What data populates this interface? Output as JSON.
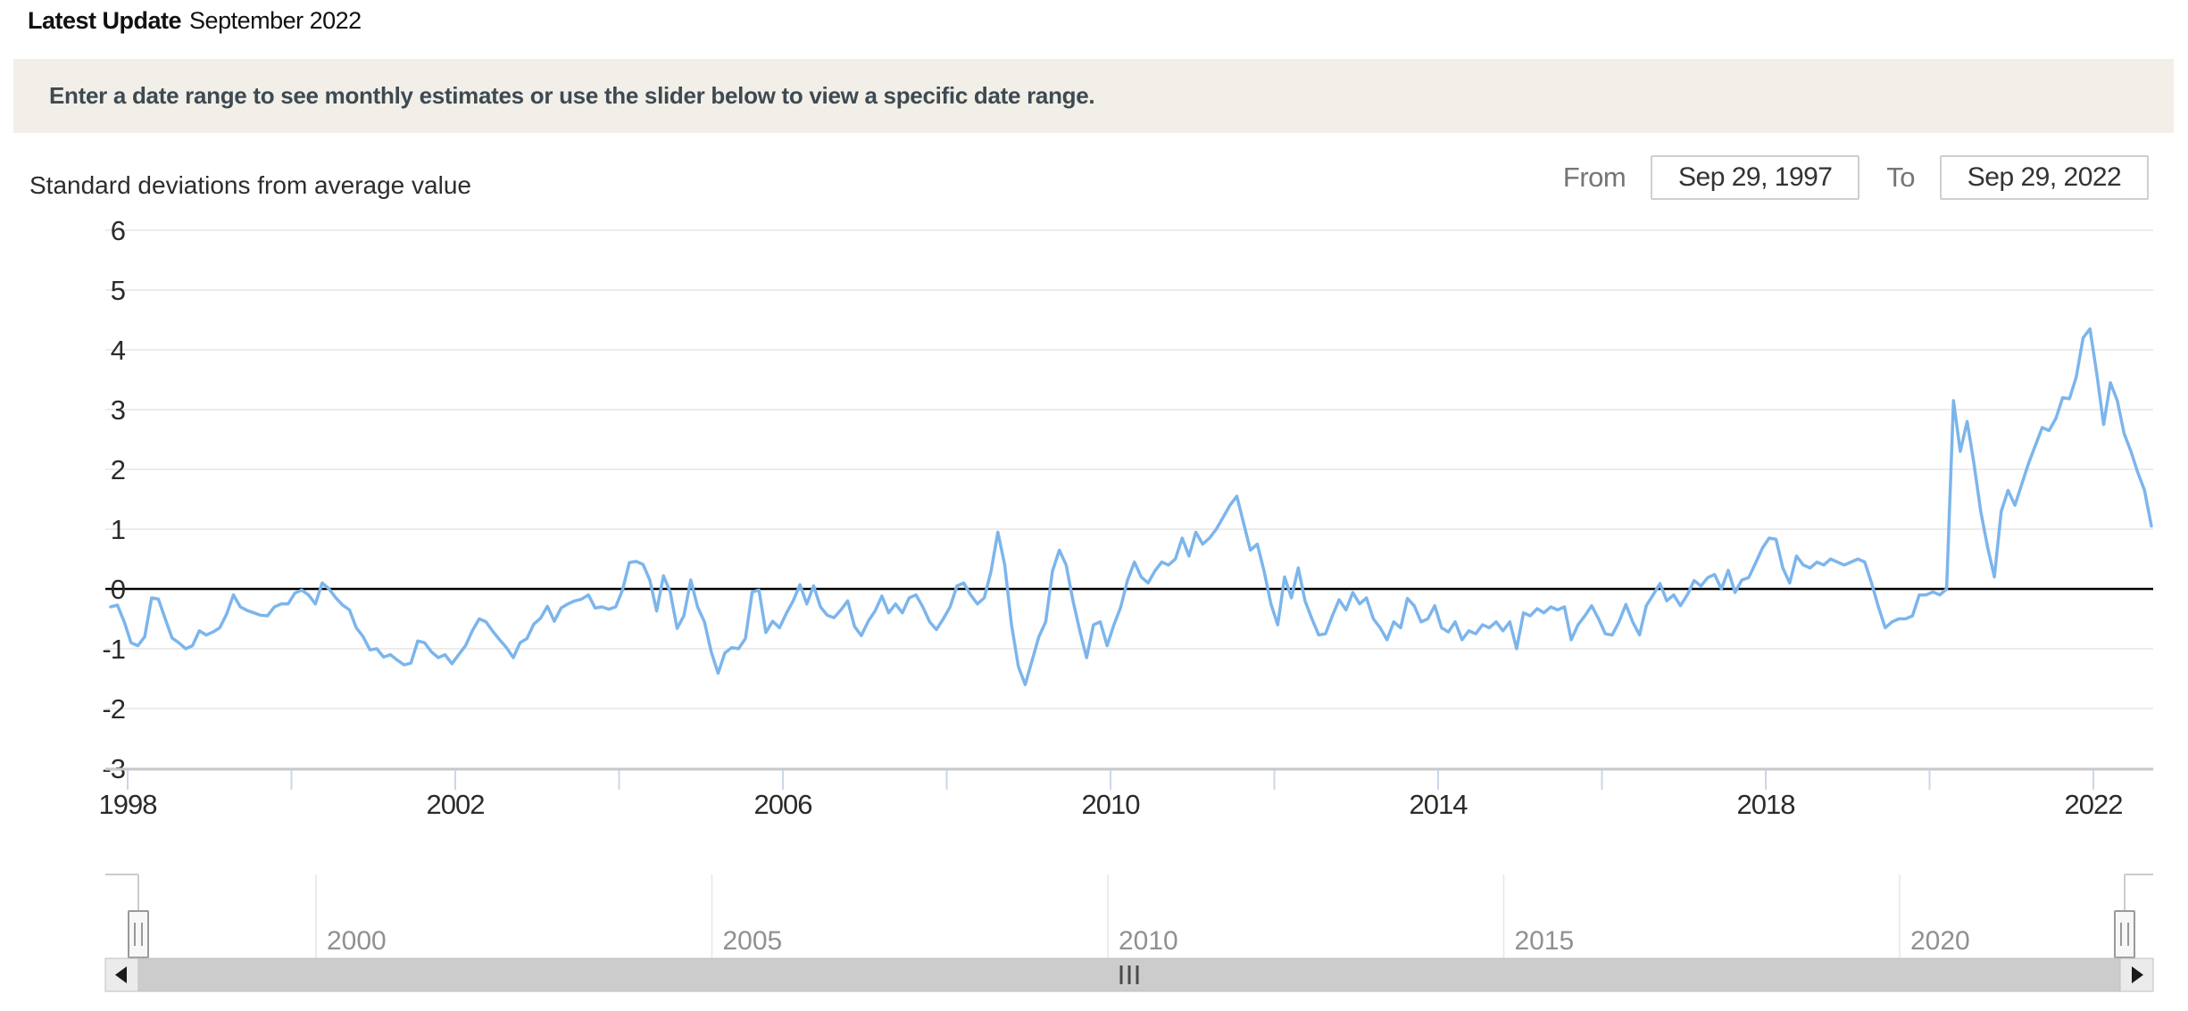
{
  "header": {
    "label": "Latest Update",
    "value": "September 2022"
  },
  "notice": {
    "text": "Enter a date range to see monthly estimates or use the slider below to view a specific date range."
  },
  "controls": {
    "from_label": "From",
    "from_value": "Sep 29, 1997",
    "to_label": "To",
    "to_value": "Sep 29, 2022"
  },
  "colors": {
    "notice_bg": "#f2efe8",
    "notice_text": "#3d4a52",
    "line": "#7cb5ec",
    "grid": "#e6e6e6",
    "zero_line": "#000000",
    "axis_line": "#c8c8c8",
    "tick": "#ccd6eb",
    "axis_label": "#2b2b2b",
    "nav_label": "#909090",
    "nav_outline": "#cccccc",
    "scrollbar_track": "#cccccc",
    "scrollbar_button": "#ebebeb",
    "scrollbar_border": "#bfbfbf",
    "arrow": "#1a1a1a",
    "grip": "#4a4a4a",
    "handle_fill": "#f7f7f7",
    "handle_border": "#999999"
  },
  "chart_data": {
    "type": "line",
    "title": "Standard deviations from average value",
    "x_range_labels": [
      "Oct 1997",
      "Sep 2022"
    ],
    "x_start": 1997.7917,
    "x_step": 0.0833333,
    "ylim": [
      -3,
      6
    ],
    "grid": true,
    "y_axis": {
      "ticks": [
        6,
        5,
        4,
        3,
        2,
        1,
        0,
        -1,
        -2,
        -3
      ]
    },
    "x_axis": {
      "tick_years": [
        1998,
        2000,
        2002,
        2004,
        2006,
        2008,
        2010,
        2012,
        2014,
        2016,
        2018,
        2020,
        2022
      ],
      "label_years": [
        1998,
        2002,
        2006,
        2010,
        2014,
        2018,
        2022
      ]
    },
    "navigator": {
      "label_years": [
        2000,
        2005,
        2010,
        2015,
        2020
      ]
    },
    "values": [
      -0.3,
      -0.27,
      -0.55,
      -0.9,
      -0.95,
      -0.8,
      -0.15,
      -0.17,
      -0.5,
      -0.82,
      -0.9,
      -1.0,
      -0.95,
      -0.7,
      -0.77,
      -0.72,
      -0.65,
      -0.42,
      -0.1,
      -0.3,
      -0.36,
      -0.4,
      -0.44,
      -0.45,
      -0.3,
      -0.25,
      -0.25,
      -0.07,
      -0.02,
      -0.1,
      -0.25,
      0.1,
      0.0,
      -0.15,
      -0.27,
      -0.35,
      -0.65,
      -0.8,
      -1.02,
      -1.0,
      -1.14,
      -1.1,
      -1.19,
      -1.27,
      -1.24,
      -0.87,
      -0.9,
      -1.05,
      -1.15,
      -1.1,
      -1.25,
      -1.1,
      -0.95,
      -0.7,
      -0.5,
      -0.55,
      -0.71,
      -0.85,
      -0.98,
      -1.15,
      -0.9,
      -0.83,
      -0.59,
      -0.49,
      -0.29,
      -0.54,
      -0.32,
      -0.25,
      -0.2,
      -0.17,
      -0.1,
      -0.32,
      -0.3,
      -0.34,
      -0.3,
      -0.02,
      0.44,
      0.46,
      0.41,
      0.15,
      -0.37,
      0.22,
      -0.05,
      -0.66,
      -0.45,
      0.15,
      -0.3,
      -0.55,
      -1.05,
      -1.41,
      -1.07,
      -0.98,
      -1.0,
      -0.83,
      -0.05,
      -0.02,
      -0.73,
      -0.54,
      -0.65,
      -0.41,
      -0.2,
      0.07,
      -0.25,
      0.05,
      -0.3,
      -0.44,
      -0.48,
      -0.35,
      -0.2,
      -0.63,
      -0.78,
      -0.54,
      -0.37,
      -0.12,
      -0.4,
      -0.25,
      -0.4,
      -0.15,
      -0.1,
      -0.3,
      -0.55,
      -0.68,
      -0.5,
      -0.3,
      0.05,
      0.1,
      -0.1,
      -0.25,
      -0.15,
      0.3,
      0.95,
      0.4,
      -0.6,
      -1.3,
      -1.6,
      -1.2,
      -0.8,
      -0.55,
      0.3,
      0.65,
      0.4,
      -0.2,
      -0.7,
      -1.15,
      -0.6,
      -0.55,
      -0.95,
      -0.6,
      -0.3,
      0.15,
      0.45,
      0.2,
      0.1,
      0.3,
      0.45,
      0.4,
      0.5,
      0.85,
      0.55,
      0.95,
      0.75,
      0.85,
      1.0,
      1.2,
      1.4,
      1.55,
      1.1,
      0.65,
      0.75,
      0.3,
      -0.25,
      -0.6,
      0.2,
      -0.15,
      0.35,
      -0.2,
      -0.5,
      -0.77,
      -0.75,
      -0.45,
      -0.18,
      -0.35,
      -0.06,
      -0.25,
      -0.15,
      -0.5,
      -0.65,
      -0.85,
      -0.55,
      -0.65,
      -0.16,
      -0.28,
      -0.55,
      -0.5,
      -0.28,
      -0.65,
      -0.72,
      -0.55,
      -0.85,
      -0.7,
      -0.75,
      -0.6,
      -0.65,
      -0.55,
      -0.7,
      -0.55,
      -1.0,
      -0.4,
      -0.45,
      -0.33,
      -0.4,
      -0.3,
      -0.35,
      -0.3,
      -0.85,
      -0.6,
      -0.45,
      -0.28,
      -0.5,
      -0.75,
      -0.77,
      -0.55,
      -0.26,
      -0.55,
      -0.77,
      -0.28,
      -0.1,
      0.09,
      -0.2,
      -0.1,
      -0.28,
      -0.1,
      0.14,
      0.05,
      0.19,
      0.24,
      0.0,
      0.31,
      -0.06,
      0.15,
      0.19,
      0.43,
      0.68,
      0.85,
      0.83,
      0.35,
      0.1,
      0.55,
      0.4,
      0.35,
      0.45,
      0.4,
      0.5,
      0.45,
      0.4,
      0.45,
      0.5,
      0.45,
      0.1,
      -0.3,
      -0.65,
      -0.55,
      -0.5,
      -0.5,
      -0.45,
      -0.1,
      -0.1,
      -0.05,
      -0.1,
      0.0,
      3.15,
      2.3,
      2.8,
      2.1,
      1.3,
      0.7,
      0.2,
      1.3,
      1.65,
      1.4,
      1.75,
      2.1,
      2.4,
      2.7,
      2.65,
      2.85,
      3.2,
      3.18,
      3.55,
      4.2,
      4.35,
      3.6,
      2.75,
      3.45,
      3.15,
      2.6,
      2.3,
      1.95,
      1.65,
      1.05
    ]
  }
}
